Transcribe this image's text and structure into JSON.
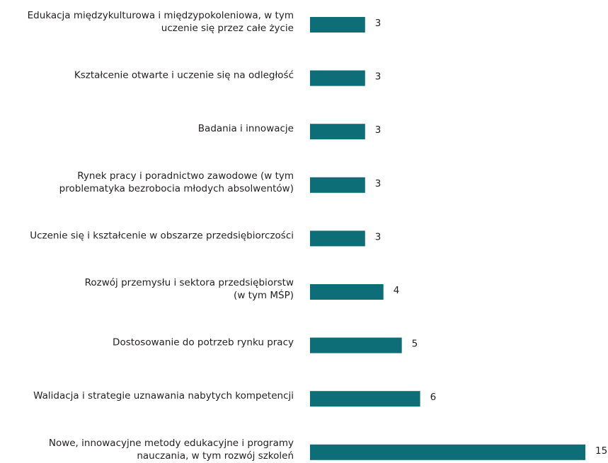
{
  "chart_data": {
    "type": "bar",
    "orientation": "horizontal",
    "color": "#0e6e78",
    "categories": [
      "Edukacja międzykulturowa i międzypokoleniowa, w tym\nuczenie się przez całe życie",
      "Kształcenie otwarte i uczenie się na odległość",
      "Badania i innowacje",
      "Rynek pracy i poradnictwo zawodowe (w tym\nproblematyka bezrobocia młodych absolwentów)",
      "Uczenie się i kształcenie w obszarze przedsiębiorczości",
      "Rozwój przemysłu i sektora przedsiębiorstw\n(w tym MŚP)",
      "Dostosowanie do potrzeb rynku pracy",
      "Walidacja i strategie uznawania nabytych kompetencji",
      "Nowe, innowacyjne metody edukacyjne i programy\nnauczania, w tym rozwój szkoleń"
    ],
    "values": [
      3,
      3,
      3,
      3,
      3,
      4,
      5,
      6,
      15
    ]
  }
}
